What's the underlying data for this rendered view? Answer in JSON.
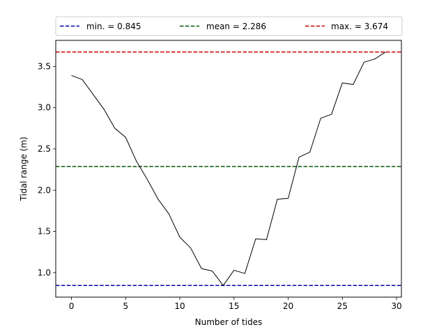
{
  "chart_data": {
    "type": "line",
    "title": "",
    "xlabel": "Number of tides",
    "ylabel": "Tidal range (m)",
    "xlim": [
      -1.45,
      30.45
    ],
    "ylim": [
      0.704,
      3.815
    ],
    "xticks": [
      0,
      5,
      10,
      15,
      20,
      25,
      30
    ],
    "yticks": [
      1.0,
      1.5,
      2.0,
      2.5,
      3.0,
      3.5
    ],
    "xtick_labels": [
      "0",
      "5",
      "10",
      "15",
      "20",
      "25",
      "30"
    ],
    "ytick_labels": [
      "1.0",
      "1.5",
      "2.0",
      "2.5",
      "3.0",
      "3.5"
    ],
    "grid": false,
    "legend_position": "top, above plot",
    "series": [
      {
        "color": "#000000",
        "style": "solid",
        "x": [
          0,
          1,
          2,
          3,
          4,
          5,
          6,
          7,
          8,
          9,
          10,
          11,
          12,
          13,
          14,
          15,
          16,
          17,
          18,
          19,
          20,
          21,
          22,
          23,
          24,
          25,
          26,
          27,
          28,
          29
        ],
        "y": [
          3.39,
          3.34,
          3.16,
          2.98,
          2.75,
          2.64,
          2.35,
          2.13,
          1.89,
          1.71,
          1.43,
          1.3,
          1.05,
          1.02,
          0.845,
          1.03,
          0.99,
          1.41,
          1.4,
          1.89,
          1.9,
          2.4,
          2.46,
          2.87,
          2.92,
          3.3,
          3.28,
          3.55,
          3.59,
          3.674
        ]
      }
    ],
    "reference_lines": [
      {
        "name": "min. = 0.845",
        "value": 0.845,
        "color": "#0000aa",
        "style": "dashed"
      },
      {
        "name": "mean = 2.286",
        "value": 2.286,
        "color": "#005500",
        "style": "dashed"
      },
      {
        "name": "max. = 3.674",
        "value": 3.674,
        "color": "#cc0000",
        "style": "dashed"
      }
    ]
  }
}
